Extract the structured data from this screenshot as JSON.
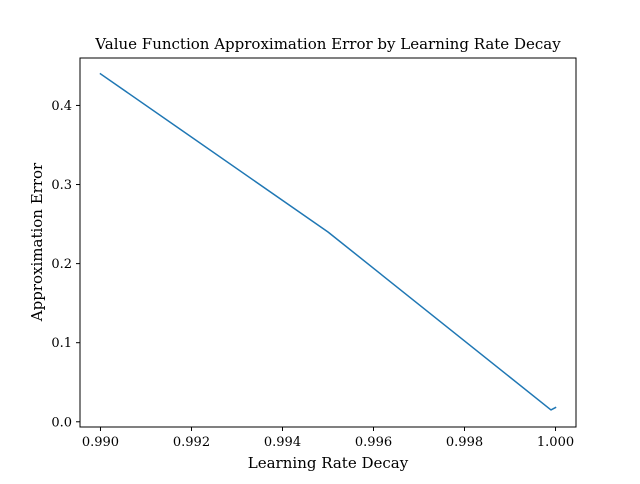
{
  "chart_data": {
    "type": "line",
    "title": "Value Function Approximation Error by Learning Rate Decay",
    "xlabel": "Learning Rate Decay",
    "ylabel": "Approximation Error",
    "xlim": [
      0.98955,
      1.00045
    ],
    "ylim": [
      -0.0066,
      0.46
    ],
    "grid": false,
    "legend": "none",
    "xticks": [
      0.99,
      0.992,
      0.994,
      0.996,
      0.998,
      1.0
    ],
    "xtick_labels": [
      "0.990",
      "0.992",
      "0.994",
      "0.996",
      "0.998",
      "1.000"
    ],
    "yticks": [
      0.0,
      0.1,
      0.2,
      0.3,
      0.4
    ],
    "ytick_labels": [
      "0.0",
      "0.1",
      "0.2",
      "0.3",
      "0.4"
    ],
    "series": [
      {
        "color": "#1f77b4",
        "x": [
          0.99,
          0.995,
          0.9999,
          1.0
        ],
        "y": [
          0.44,
          0.24,
          0.015,
          0.018
        ]
      }
    ]
  }
}
